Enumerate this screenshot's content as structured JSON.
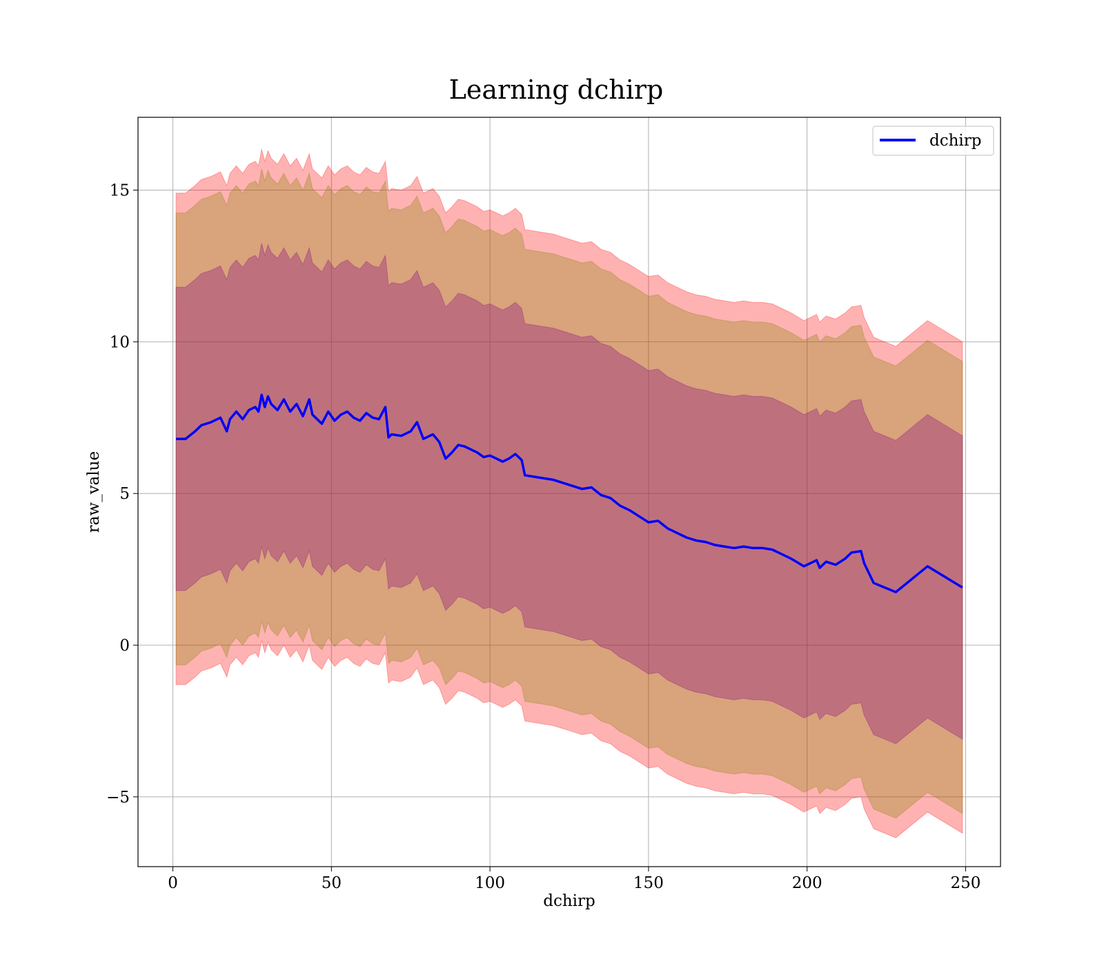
{
  "chart_data": {
    "type": "line",
    "title": "Learning dchirp",
    "xlabel": "dchirp",
    "ylabel": "raw_value",
    "xlim": [
      -11,
      261
    ],
    "ylim": [
      -7.3,
      17.4
    ],
    "xticks": [
      0,
      50,
      100,
      150,
      200,
      250
    ],
    "yticks": [
      -5,
      0,
      5,
      10,
      15
    ],
    "ytick_labels": [
      "−5",
      "0",
      "5",
      "10",
      "15"
    ],
    "grid": true,
    "legend_position": "top-right",
    "series": [
      {
        "name": "dchirp",
        "color": "#0000ff",
        "x": [
          1,
          4,
          7,
          9,
          12,
          15,
          17,
          18,
          20,
          22,
          24,
          26,
          27,
          28,
          29,
          30,
          31,
          33,
          35,
          37,
          39,
          41,
          43,
          44,
          45,
          47,
          49,
          51,
          53,
          55,
          57,
          59,
          61,
          63,
          65,
          67,
          68,
          69,
          72,
          75,
          77,
          79,
          82,
          84,
          86,
          88,
          90,
          92,
          94,
          96,
          98,
          100,
          102,
          104,
          106,
          108,
          110,
          111,
          114,
          117,
          120,
          123,
          126,
          129,
          132,
          135,
          138,
          141,
          144,
          147,
          150,
          153,
          156,
          159,
          162,
          165,
          168,
          171,
          174,
          177,
          180,
          183,
          186,
          189,
          192,
          195,
          199,
          203,
          204,
          206,
          209,
          212,
          214,
          217,
          218,
          221,
          228,
          238,
          249
        ],
        "values": [
          6.8,
          6.8,
          7.05,
          7.25,
          7.35,
          7.5,
          7.05,
          7.45,
          7.7,
          7.45,
          7.75,
          7.85,
          7.7,
          8.25,
          7.85,
          8.2,
          7.95,
          7.75,
          8.1,
          7.7,
          7.95,
          7.55,
          8.1,
          7.6,
          7.5,
          7.3,
          7.7,
          7.4,
          7.6,
          7.7,
          7.5,
          7.4,
          7.65,
          7.5,
          7.45,
          7.85,
          6.85,
          6.95,
          6.9,
          7.05,
          7.35,
          6.8,
          6.95,
          6.7,
          6.15,
          6.35,
          6.6,
          6.55,
          6.45,
          6.35,
          6.2,
          6.25,
          6.15,
          6.05,
          6.15,
          6.3,
          6.1,
          5.6,
          5.55,
          5.5,
          5.45,
          5.35,
          5.25,
          5.15,
          5.2,
          4.95,
          4.85,
          4.6,
          4.45,
          4.25,
          4.05,
          4.1,
          3.85,
          3.7,
          3.55,
          3.45,
          3.4,
          3.3,
          3.25,
          3.2,
          3.25,
          3.2,
          3.2,
          3.15,
          3.0,
          2.85,
          2.6,
          2.8,
          2.55,
          2.75,
          2.65,
          2.85,
          3.05,
          3.1,
          2.7,
          2.05,
          1.75,
          2.6,
          1.9
        ]
      }
    ],
    "bands": [
      {
        "color": "#ff0000",
        "opacity": 0.3,
        "offset": 8.1
      },
      {
        "color": "#808000",
        "opacity": 0.3,
        "offset": 7.45
      },
      {
        "color": "#800080",
        "opacity": 0.3,
        "offset": 5.0
      }
    ]
  }
}
